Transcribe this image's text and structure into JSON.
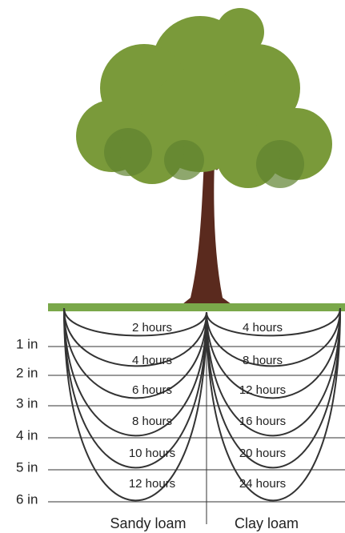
{
  "depths": [
    "1 in",
    "2 in",
    "3 in",
    "4 in",
    "5 in",
    "6 in"
  ],
  "soils": [
    {
      "name": "Sandy loam",
      "times": [
        "2 hours",
        "4 hours",
        "6 hours",
        "8 hours",
        "10 hours",
        "12 hours"
      ]
    },
    {
      "name": "Clay loam",
      "times": [
        "4 hours",
        "8 hours",
        "12 hours",
        "16 hours",
        "20 hours",
        "24 hours"
      ]
    }
  ]
}
